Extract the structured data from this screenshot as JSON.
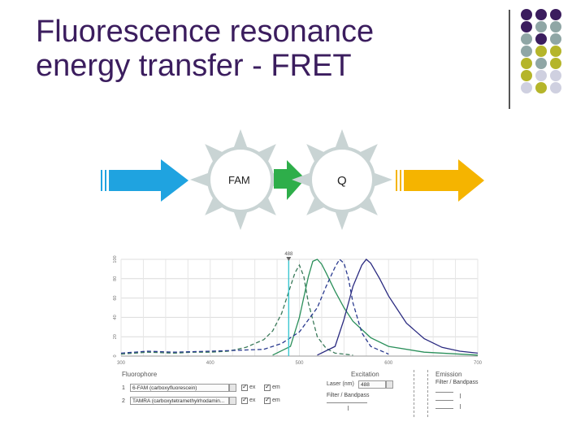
{
  "title": {
    "line1": "Fluorescence resonance",
    "line2": "energy transfer - FRET"
  },
  "colors": {
    "title": "#3b1d5e",
    "purple": "#3b1d5e",
    "teal_gray": "#8fa6a5",
    "olive": "#b5b52a",
    "light_lilac": "#cfd0e0",
    "sun": "#c9d4d4",
    "blue_arrow": "#1fa3e0",
    "green_arrow": "#2eae4a",
    "orange_arrow": "#f5b400"
  },
  "diagram": {
    "donor_label": "FAM",
    "acceptor_label": "Q",
    "excitation_arrow": "blue-arrow",
    "transfer_arrow": "green-arrow",
    "emission_arrow": "orange-arrow"
  },
  "chart_data": {
    "type": "line",
    "title": "",
    "xlabel": "",
    "ylabel": "",
    "xlim": [
      300,
      700
    ],
    "ylim": [
      0,
      100
    ],
    "x_ticks": [
      "300",
      "400",
      "500",
      "600",
      "700"
    ],
    "y_ticks": [
      "0",
      "20",
      "40",
      "60",
      "80",
      "100"
    ],
    "laser_marker": "488",
    "series": [
      {
        "color": "#3a7a5a",
        "dash": true,
        "x": [
          300,
          330,
          360,
          380,
          400,
          420,
          440,
          460,
          470,
          480,
          490,
          495,
          500,
          505,
          510,
          520,
          530,
          540,
          560
        ],
        "y": [
          2,
          4,
          3,
          4,
          4,
          5,
          9,
          17,
          26,
          44,
          72,
          86,
          94,
          82,
          55,
          20,
          8,
          3,
          1
        ]
      },
      {
        "color": "#2a8f5a",
        "dash": false,
        "x": [
          470,
          490,
          500,
          510,
          515,
          520,
          525,
          530,
          540,
          550,
          560,
          580,
          600,
          640,
          700
        ],
        "y": [
          1,
          10,
          40,
          82,
          98,
          100,
          95,
          86,
          67,
          50,
          36,
          19,
          10,
          4,
          1
        ]
      },
      {
        "color": "#2a3a8f",
        "dash": true,
        "x": [
          300,
          330,
          360,
          400,
          430,
          460,
          480,
          500,
          520,
          530,
          540,
          545,
          550,
          555,
          560,
          570,
          580,
          600
        ],
        "y": [
          3,
          5,
          4,
          5,
          6,
          7,
          13,
          25,
          50,
          72,
          92,
          100,
          96,
          80,
          55,
          24,
          10,
          2
        ]
      },
      {
        "color": "#2a2a80",
        "dash": false,
        "x": [
          520,
          540,
          550,
          560,
          570,
          575,
          580,
          590,
          600,
          620,
          640,
          660,
          680,
          700
        ],
        "y": [
          1,
          10,
          38,
          72,
          94,
          100,
          96,
          80,
          62,
          34,
          18,
          9,
          5,
          3
        ]
      }
    ]
  },
  "panel": {
    "fluorophore_header": "Fluorophore",
    "excitation_header": "Excitation",
    "emission_header": "Emission",
    "row1_index": "1",
    "row1_name": "6-FAM (carboxyfluorescein)",
    "row2_index": "2",
    "row2_name": "TAMRA (carboxytetramethylrhodamin...",
    "ex_label": "ex",
    "em_label": "em",
    "laser_label": "Laser (nm)",
    "laser_value": "488",
    "filter_label": "Filter / Bandpass",
    "filter_bandpass_label": "Filter / Bandpass"
  }
}
